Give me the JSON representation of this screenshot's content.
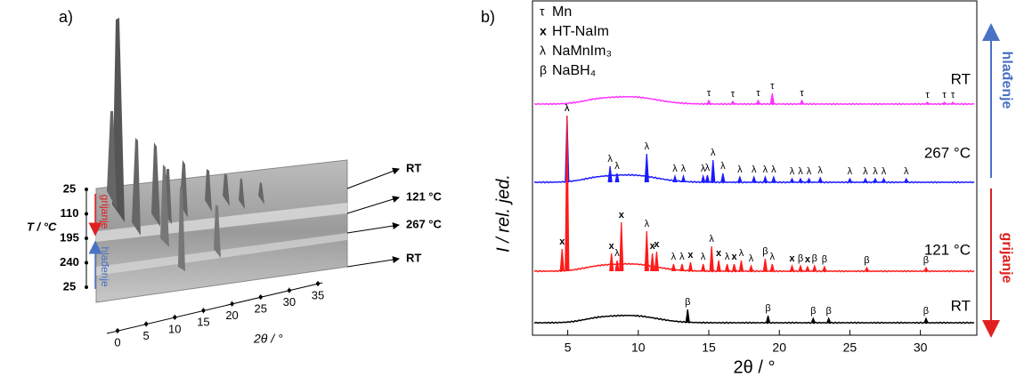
{
  "chart_data": [
    {
      "type": "waterfall",
      "label": "a)",
      "xlim": [
        0,
        35
      ],
      "xticks": [
        0,
        5,
        10,
        15,
        20,
        25,
        30,
        35
      ],
      "xlabel": "2θ / °",
      "ylabel": "T / °C",
      "temperatures": [
        "25",
        "110",
        "195",
        "240",
        "25"
      ],
      "heating_label": "grijanje",
      "cooling_label": "hlađenje",
      "trace_labels": [
        "RT",
        "121 °C",
        "267 °C",
        "RT"
      ]
    },
    {
      "type": "xrd",
      "label": "b)",
      "xlim": [
        2.5,
        34
      ],
      "xticks": [
        5,
        10,
        15,
        20,
        25,
        30
      ],
      "xlabel": "2θ / °",
      "ylabel": "I / rel. jed.",
      "heating_label": "grijanje",
      "cooling_label": "hlađenje",
      "legend": [
        {
          "symbol": "τ",
          "name": "Mn"
        },
        {
          "symbol": "x",
          "name": "HT-NaIm"
        },
        {
          "symbol": "λ",
          "name": "NaMnIm₃"
        },
        {
          "symbol": "β",
          "name": "NaBH₄"
        }
      ],
      "series": [
        {
          "name": "RT",
          "color": "#ff33ff",
          "x": [
            15.0,
            16.7,
            18.5,
            19.5,
            21.6,
            30.5,
            31.7,
            32.3
          ],
          "values": [
            4,
            3,
            4,
            12,
            4,
            2,
            2,
            2
          ],
          "markers": [
            "τ",
            "τ",
            "τ",
            "τ",
            "τ",
            "τ",
            "τ",
            "τ"
          ]
        },
        {
          "name": "267 °C",
          "color": "#1a1aff",
          "x": [
            4.95,
            8.0,
            8.5,
            10.6,
            12.6,
            13.2,
            14.6,
            14.9,
            15.3,
            16.0,
            17.2,
            18.2,
            19.0,
            19.6,
            20.9,
            21.5,
            22.1,
            22.9,
            25.0,
            26.1,
            26.8,
            27.4,
            29.0
          ],
          "values": [
            75,
            18,
            10,
            32,
            7,
            7,
            7,
            8,
            25,
            10,
            6,
            6,
            6,
            6,
            4,
            4,
            4,
            5,
            4,
            4,
            4,
            4,
            4
          ],
          "markers": [
            "λ",
            "λ",
            "λ",
            "λ",
            "λ",
            "λ",
            "λ",
            "λ",
            "λ",
            "λ",
            "λ",
            "λ",
            "λ",
            "λ",
            "λ",
            "λ",
            "λ",
            "λ",
            "λ",
            "λ",
            "λ",
            "λ",
            "λ"
          ]
        },
        {
          "name": "121 °C",
          "color": "#ff1a1a",
          "x": [
            4.6,
            4.95,
            8.1,
            8.5,
            8.8,
            10.6,
            11.0,
            11.3,
            12.5,
            13.1,
            13.7,
            14.6,
            15.2,
            15.7,
            16.3,
            16.8,
            17.3,
            18.0,
            19.0,
            19.5,
            20.9,
            21.5,
            22.0,
            22.5,
            23.2,
            26.2,
            30.4
          ],
          "values": [
            25,
            175,
            20,
            12,
            55,
            45,
            20,
            22,
            8,
            8,
            10,
            8,
            28,
            12,
            8,
            8,
            12,
            6,
            14,
            8,
            6,
            6,
            5,
            6,
            5,
            4,
            4
          ],
          "markers": [
            "x",
            "λ",
            "x",
            "λ",
            "x",
            "λ",
            "x",
            "x",
            "λ",
            "λ",
            "x",
            "λ",
            "λ",
            "x",
            "λ",
            "x",
            "λ",
            "λ",
            "β",
            "λ",
            "x",
            "β",
            "x",
            "β",
            "β",
            "β",
            "β"
          ]
        },
        {
          "name": "RT",
          "color": "#000000",
          "x": [
            13.5,
            19.2,
            22.4,
            23.5,
            30.4
          ],
          "values": [
            15,
            8,
            5,
            5,
            5
          ],
          "markers": [
            "β",
            "β",
            "β",
            "β",
            "β"
          ]
        }
      ]
    }
  ]
}
